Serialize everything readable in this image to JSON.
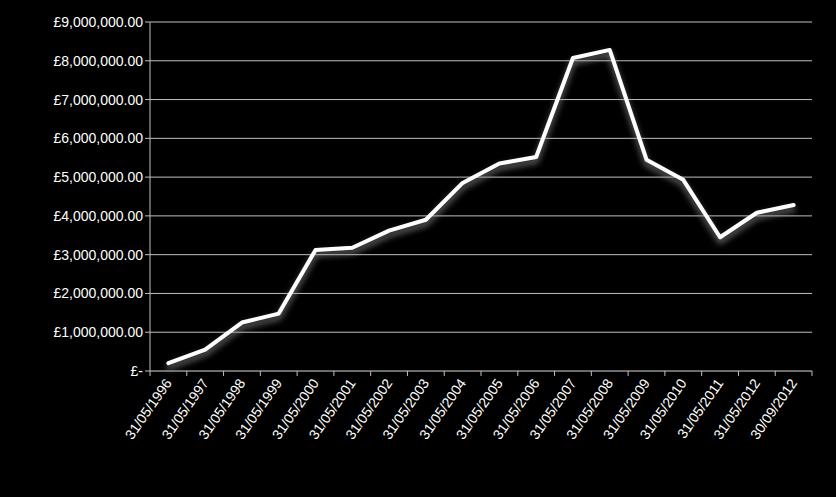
{
  "chart_data": {
    "type": "line",
    "categories": [
      "31/05/1996",
      "31/05/1997",
      "31/05/1998",
      "31/05/1999",
      "31/05/2000",
      "31/05/2001",
      "31/05/2002",
      "31/05/2003",
      "31/05/2004",
      "31/05/2005",
      "31/05/2006",
      "31/05/2007",
      "31/05/2008",
      "31/05/2009",
      "31/05/2010",
      "31/05/2011",
      "31/05/2012",
      "30/09/2012"
    ],
    "values": [
      200000,
      550000,
      1250000,
      1480000,
      3120000,
      3180000,
      3620000,
      3900000,
      4850000,
      5350000,
      5520000,
      8070000,
      8280000,
      5450000,
      4930000,
      3450000,
      4080000,
      4280000
    ],
    "color": "#ffffff",
    "ylim": [
      0,
      9000000
    ],
    "yticks": [
      {
        "value": 0,
        "label": "£-"
      },
      {
        "value": 1000000,
        "label": "£1,000,000.00"
      },
      {
        "value": 2000000,
        "label": "£2,000,000.00"
      },
      {
        "value": 3000000,
        "label": "£3,000,000.00"
      },
      {
        "value": 4000000,
        "label": "£4,000,000.00"
      },
      {
        "value": 5000000,
        "label": "£5,000,000.00"
      },
      {
        "value": 6000000,
        "label": "£6,000,000.00"
      },
      {
        "value": 7000000,
        "label": "£7,000,000.00"
      },
      {
        "value": 8000000,
        "label": "£8,000,000.00"
      },
      {
        "value": 9000000,
        "label": "£9,000,000.00"
      }
    ],
    "grid": true
  }
}
